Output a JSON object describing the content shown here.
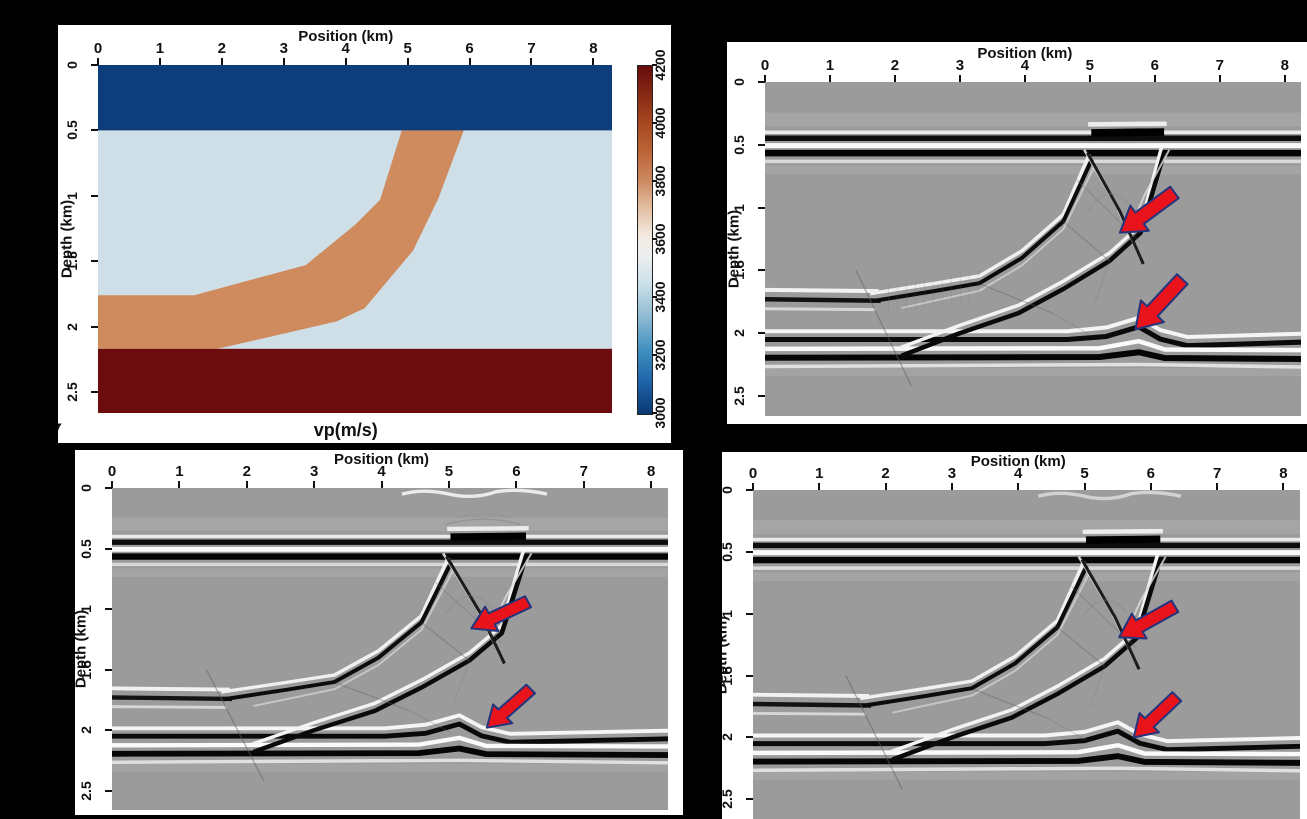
{
  "figure": {
    "background": "#000000",
    "partial_caption_glyph": "(",
    "description": "Four-panel seismic figure: velocity model with colorbar and three grayscale depth-migration images annotated with red arrows."
  },
  "shared_axes": {
    "x_label": "Position (km)",
    "x_ticks": [
      "0",
      "1",
      "2",
      "3",
      "4",
      "5",
      "6",
      "7",
      "8"
    ],
    "y_label": "Depth (km)",
    "y_ticks": [
      "0",
      "0.5",
      "1",
      "1.5",
      "2",
      "2.5"
    ]
  },
  "chart_data": [
    {
      "id": "velocity-model",
      "panel": "top-left",
      "type": "heatmap",
      "title": "vp(m/s)",
      "xlabel": "Position (km)",
      "ylabel": "Depth (km)",
      "x_range_km": [
        0,
        8.3
      ],
      "depth_range_km": [
        0,
        2.66
      ],
      "x_ticks": [
        0,
        1,
        2,
        3,
        4,
        5,
        6,
        7,
        8
      ],
      "y_ticks": [
        0,
        0.5,
        1,
        1.5,
        2,
        2.5
      ],
      "colorbar": {
        "label": "vp(m/s)",
        "min": 3000,
        "max": 4200,
        "ticks": [
          3000,
          3200,
          3400,
          3600,
          3800,
          4000,
          4200
        ],
        "gradient_bottom_to_top": [
          "#0a3770 0%",
          "#1e62a8 9%",
          "#3d8fbe 18%",
          "#8ebbd2 28%",
          "#c9dfe8 37%",
          "#ebeff0 45%",
          "#f3ebe2 51%",
          "#e3c0a4 59%",
          "#cd8a61 67%",
          "#bc6538 75%",
          "#a84a22 83%",
          "#8a2c14 91%",
          "#670b0d 100%"
        ]
      },
      "layers": [
        {
          "name": "top layer",
          "vp_mps": 3000,
          "depth_top_km": 0,
          "depth_bottom_km": 0.5,
          "fill": "#0e3d7b"
        },
        {
          "name": "background layer",
          "vp_mps": 3500,
          "depth_top_km": 0.5,
          "depth_bottom_km": 2.17,
          "fill": "#cfdfe8"
        },
        {
          "name": "dipping channel",
          "vp_mps": 3800,
          "fill": "#cf8a5e",
          "outline_km": [
            [
              0,
              1.76
            ],
            [
              1.55,
              1.76
            ],
            [
              3.35,
              1.53
            ],
            [
              4.15,
              1.22
            ],
            [
              4.55,
              1.03
            ],
            [
              4.9,
              0.5
            ],
            [
              5.9,
              0.5
            ],
            [
              5.49,
              1.02
            ],
            [
              5.08,
              1.42
            ],
            [
              4.3,
              1.86
            ],
            [
              3.85,
              1.96
            ],
            [
              1.93,
              2.17
            ],
            [
              0,
              2.17
            ]
          ]
        },
        {
          "name": "basement",
          "vp_mps": 4200,
          "depth_top_km": 2.17,
          "depth_bottom_km": 2.66,
          "fill": "#6d0c0e"
        }
      ]
    },
    {
      "id": "migration-image-1",
      "panel": "top-right",
      "type": "heatmap",
      "palette": "grayscale",
      "xlabel": "Position (km)",
      "ylabel": "Depth (km)",
      "x_range_km": [
        0,
        8.25
      ],
      "depth_range_km": [
        0,
        2.66
      ],
      "x_ticks": [
        0,
        1,
        2,
        3,
        4,
        5,
        6,
        7,
        8
      ],
      "y_ticks": [
        0,
        0.5,
        1,
        1.5,
        2,
        2.5
      ],
      "reflectors_km": {
        "shallow": [
          0.45,
          0.57
        ],
        "dipping_top_from": 1.73,
        "deep": [
          2.05,
          2.2
        ],
        "pullup_bump_center": 5.75
      },
      "variant": "B",
      "annotations": [
        {
          "type": "arrow",
          "fill": "#e8131b",
          "outline": "#23357d",
          "tail_km": [
            6.3,
            0.88
          ],
          "tip_km": [
            5.46,
            1.2
          ]
        },
        {
          "type": "arrow",
          "fill": "#e8131b",
          "outline": "#23357d",
          "tail_km": [
            6.42,
            1.57
          ],
          "tip_km": [
            5.7,
            1.97
          ]
        }
      ]
    },
    {
      "id": "migration-image-2",
      "panel": "bottom-left",
      "type": "heatmap",
      "palette": "grayscale",
      "xlabel": "Position (km)",
      "ylabel": "Depth (km)",
      "x_range_km": [
        0,
        8.25
      ],
      "depth_range_km": [
        0,
        2.66
      ],
      "x_ticks": [
        0,
        1,
        2,
        3,
        4,
        5,
        6,
        7,
        8
      ],
      "y_ticks": [
        0,
        0.5,
        1,
        1.5,
        2,
        2.5
      ],
      "reflectors_km": {
        "shallow": [
          0.45,
          0.57
        ],
        "dipping_top_from": 1.73,
        "deep": [
          2.05,
          2.2
        ],
        "pullup_bump_center": 5.15
      },
      "variant": "C",
      "annotations": [
        {
          "type": "arrow",
          "fill": "#e8131b",
          "outline": "#23357d",
          "tail_km": [
            6.17,
            0.94
          ],
          "tip_km": [
            5.33,
            1.16
          ]
        },
        {
          "type": "arrow",
          "fill": "#e8131b",
          "outline": "#23357d",
          "tail_km": [
            6.21,
            1.66
          ],
          "tip_km": [
            5.56,
            1.98
          ]
        }
      ]
    },
    {
      "id": "migration-image-3",
      "panel": "bottom-right",
      "type": "heatmap",
      "palette": "grayscale",
      "xlabel": "Position (km)",
      "ylabel": "Depth (km)",
      "x_range_km": [
        0,
        8.25
      ],
      "depth_range_km": [
        0,
        2.66
      ],
      "x_ticks": [
        0,
        1,
        2,
        3,
        4,
        5,
        6,
        7,
        8
      ],
      "y_ticks": [
        0,
        0.5,
        1,
        1.5,
        2,
        2.5
      ],
      "reflectors_km": {
        "shallow": [
          0.45,
          0.57
        ],
        "dipping_top_from": 1.73,
        "deep": [
          2.05,
          2.2
        ],
        "pullup_bump_center": 5.5
      },
      "variant": "D",
      "annotations": [
        {
          "type": "arrow",
          "fill": "#e8131b",
          "outline": "#23357d",
          "tail_km": [
            6.36,
            0.94
          ],
          "tip_km": [
            5.52,
            1.19
          ]
        },
        {
          "type": "arrow",
          "fill": "#e8131b",
          "outline": "#23357d",
          "tail_km": [
            6.39,
            1.67
          ],
          "tip_km": [
            5.74,
            2.0
          ]
        }
      ]
    }
  ]
}
